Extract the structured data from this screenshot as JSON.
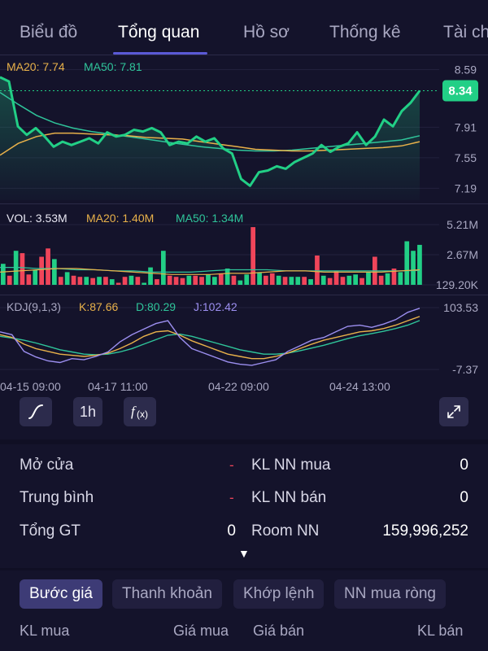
{
  "tabs": [
    {
      "label": "Biểu đồ",
      "active": false
    },
    {
      "label": "Tổng quan",
      "active": true
    },
    {
      "label": "Hồ sơ",
      "active": false
    },
    {
      "label": "Thống kê",
      "active": false
    },
    {
      "label": "Tài ch",
      "active": false
    }
  ],
  "colors": {
    "background": "#14132b",
    "accent": "#5b5ad6",
    "up": "#22cf86",
    "down": "#f0455a",
    "ma20": "#e8b14a",
    "ma50": "#2fc49a",
    "kdj_d": "#e8b14a",
    "kdj_j": "#9c8ff0"
  },
  "price_panel": {
    "ma20_label": "MA20: 7.74",
    "ma50_label": "MA50: 7.81",
    "y_ticks": [
      "8.59",
      "7.91",
      "7.55",
      "7.19"
    ],
    "last_price": "8.34"
  },
  "volume_panel": {
    "vol_label": "VOL: 3.53M",
    "ma20_label": "MA20: 1.40M",
    "ma50_label": "MA50: 1.34M",
    "y_ticks": [
      "5.21M",
      "2.67M",
      "129.20K"
    ]
  },
  "kdj_panel": {
    "title": "KDJ(9,1,3)",
    "k_label": "K:87.66",
    "d_label": "D:80.29",
    "j_label": "J:102.42",
    "y_ticks": [
      "103.53",
      "-7.37"
    ]
  },
  "time_axis": [
    "04-15 09:00",
    "04-17 11:00",
    "04-22 09:00",
    "04-24 13:00"
  ],
  "toolbar": {
    "line_icon": "line-chart-icon",
    "interval": "1h",
    "fx_icon": "function-fx-icon",
    "expand_icon": "expand-icon"
  },
  "chart_data": [
    {
      "type": "line",
      "title": "",
      "series": [
        {
          "name": "",
          "values": [
            8.5,
            8.45,
            7.92,
            7.82,
            7.9,
            7.8,
            7.68,
            7.74,
            7.7,
            7.74,
            7.78,
            7.72,
            7.85,
            7.8,
            7.82,
            7.88,
            7.86,
            7.9,
            7.85,
            7.7,
            7.74,
            7.72,
            7.8,
            7.74,
            7.78,
            7.66,
            7.6,
            7.3,
            7.22,
            7.38,
            7.4,
            7.45,
            7.42,
            7.5,
            7.55,
            7.6,
            7.7,
            7.62,
            7.68,
            7.72,
            7.85,
            7.7,
            7.8,
            8.0,
            7.92,
            8.1,
            8.2,
            8.34
          ]
        },
        {
          "name": "MA20",
          "values": [
            7.58,
            7.72,
            7.8,
            7.84,
            7.84,
            7.83,
            7.82,
            7.81,
            7.79,
            7.78,
            7.77,
            7.74,
            7.71,
            7.68,
            7.65,
            7.64,
            7.63,
            7.63,
            7.64,
            7.65,
            7.66,
            7.67,
            7.69,
            7.74
          ]
        },
        {
          "name": "MA50",
          "values": [
            8.32,
            8.18,
            8.05,
            7.96,
            7.9,
            7.86,
            7.83,
            7.8,
            7.77,
            7.74,
            7.71,
            7.68,
            7.66,
            7.64,
            7.63,
            7.63,
            7.64,
            7.66,
            7.68,
            7.7,
            7.72,
            7.74,
            7.76,
            7.81
          ]
        }
      ],
      "ylim": [
        7.05,
        8.7
      ]
    },
    {
      "type": "bar",
      "title": "",
      "values": [
        1.9,
        0.9,
        3.0,
        2.8,
        1.0,
        1.4,
        2.5,
        3.2,
        2.3,
        0.8,
        1.2,
        0.9,
        0.8,
        0.8,
        0.7,
        0.8,
        0.8,
        0.6,
        0.3,
        0.8,
        0.9,
        0.8,
        0.3,
        1.6,
        0.6,
        3.0,
        0.9,
        0.8,
        0.7,
        0.9,
        0.9,
        0.8,
        1.0,
        0.8,
        1.1,
        1.5,
        0.9,
        0.5,
        1.0,
        5.0,
        1.2,
        0.9,
        1.1,
        0.9,
        0.8,
        0.8,
        0.8,
        0.8,
        0.6,
        2.6,
        0.9,
        0.7,
        1.3,
        0.8,
        0.9,
        1.0,
        0.7,
        1.2,
        2.5,
        0.9,
        1.1,
        1.5,
        1.2,
        3.8,
        3.0,
        3.5
      ],
      "up": [
        1,
        0,
        1,
        0,
        0,
        1,
        0,
        0,
        1,
        0,
        1,
        0,
        0,
        1,
        0,
        1,
        0,
        1,
        0,
        0,
        1,
        0,
        1,
        1,
        0,
        1,
        0,
        0,
        0,
        1,
        0,
        0,
        1,
        1,
        0,
        1,
        0,
        1,
        1,
        0,
        1,
        0,
        0,
        1,
        0,
        1,
        1,
        0,
        1,
        0,
        1,
        0,
        0,
        0,
        1,
        1,
        0,
        1,
        0,
        0,
        1,
        0,
        1,
        1,
        1,
        1
      ],
      "series": [
        {
          "name": "MA20",
          "values": [
            1.2,
            1.3,
            1.4,
            1.5,
            1.5,
            1.4,
            1.3,
            1.2,
            1.1,
            1.0,
            1.0,
            1.0,
            1.1,
            1.1,
            1.2,
            1.3,
            1.3,
            1.2,
            1.2,
            1.2,
            1.2,
            1.3,
            1.4
          ]
        },
        {
          "name": "MA50",
          "values": [
            1.6,
            1.6,
            1.5,
            1.5,
            1.4,
            1.4,
            1.3,
            1.3,
            1.2,
            1.2,
            1.2,
            1.3,
            1.4,
            1.4,
            1.4,
            1.3,
            1.3,
            1.3,
            1.3,
            1.3,
            1.3,
            1.3,
            1.34
          ]
        }
      ],
      "ylim": [
        0.1292,
        5.21
      ]
    },
    {
      "type": "line",
      "title": "",
      "series": [
        {
          "name": "K",
          "values": [
            55,
            50,
            38,
            30,
            25,
            20,
            18,
            16,
            18,
            22,
            30,
            40,
            52,
            60,
            62,
            54,
            44,
            36,
            28,
            20,
            16,
            12,
            12,
            16,
            22,
            30,
            38,
            45,
            50,
            55,
            60,
            62,
            66,
            72,
            80,
            87.66
          ]
        },
        {
          "name": "D",
          "values": [
            52,
            49,
            45,
            40,
            34,
            28,
            24,
            20,
            19,
            20,
            24,
            30,
            38,
            46,
            54,
            56,
            52,
            46,
            40,
            34,
            28,
            24,
            20,
            20,
            22,
            26,
            31,
            36,
            42,
            48,
            53,
            57,
            61,
            66,
            72,
            80.29
          ]
        },
        {
          "name": "J",
          "values": [
            60,
            55,
            25,
            15,
            8,
            5,
            12,
            10,
            16,
            24,
            42,
            55,
            65,
            75,
            80,
            50,
            30,
            22,
            14,
            6,
            2,
            0,
            5,
            10,
            25,
            35,
            45,
            50,
            60,
            70,
            72,
            68,
            74,
            82,
            95,
            102.42
          ]
        }
      ],
      "ylim": [
        -7.37,
        103.53
      ]
    }
  ],
  "stats": {
    "open_label": "Mở cửa",
    "open_value": "-",
    "avg_label": "Trung bình",
    "avg_value": "-",
    "total_label": "Tổng GT",
    "total_value": "0",
    "fb_label": "KL NN mua",
    "fb_value": "0",
    "fs_label": "KL NN bán",
    "fs_value": "0",
    "room_label": "Room NN",
    "room_value": "159,996,252",
    "caret": "▼"
  },
  "subtabs": [
    {
      "label": "Bước giá",
      "active": true
    },
    {
      "label": "Thanh khoản",
      "active": false
    },
    {
      "label": "Khớp lệnh",
      "active": false
    },
    {
      "label": "NN mua ròng",
      "active": false
    }
  ],
  "orderbook": {
    "bid_vol": "KL mua",
    "bid_price": "Giá mua",
    "ask_price": "Giá bán",
    "ask_vol": "KL bán"
  }
}
